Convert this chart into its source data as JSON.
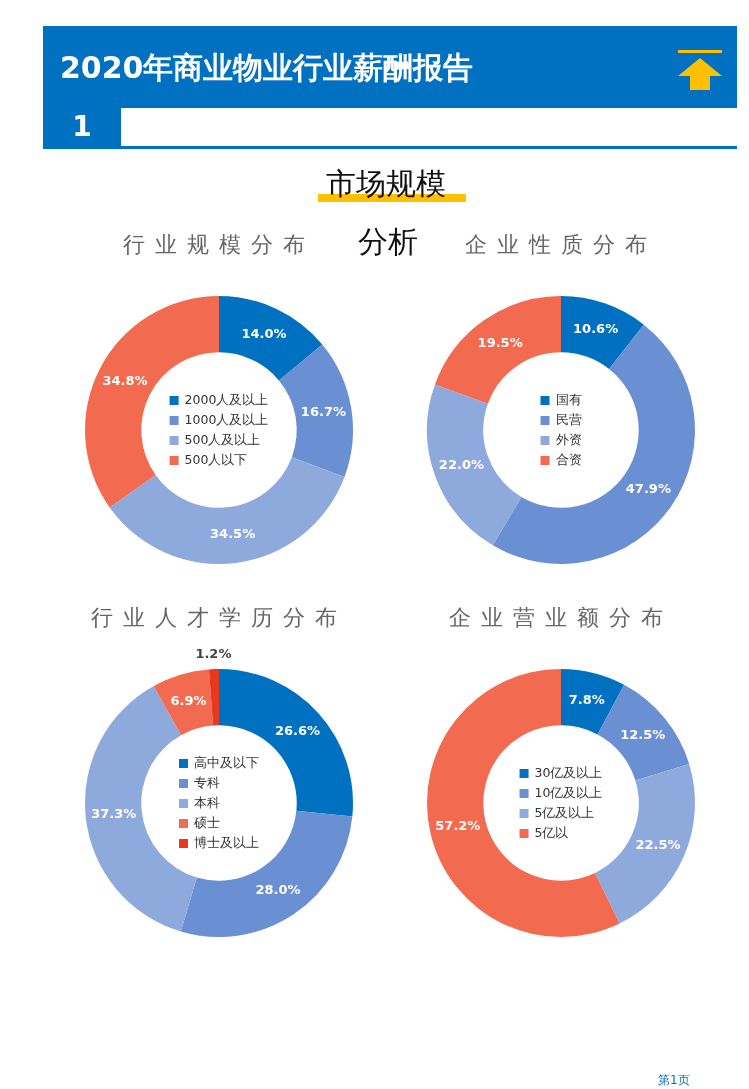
{
  "chart_data": [
    {
      "type": "other",
      "title": "2020年商业物业行业薪酬报告",
      "annotations": [
        "1",
        "市场规模",
        "分析",
        "第1页"
      ]
    },
    {
      "type": "donut",
      "title": "行业规模分布",
      "categories": [
        "2000人及以上",
        "1000人及以上",
        "500人及以上",
        "500人以下"
      ],
      "values": [
        14.0,
        16.7,
        34.5,
        34.8
      ],
      "value_labels": [
        "14.0%",
        "16.7%",
        "34.5%",
        "34.8%"
      ],
      "colors": [
        "#0070c0",
        "#6b8fd3",
        "#8eaadc",
        "#f26b50"
      ],
      "legend": "center"
    },
    {
      "type": "donut",
      "title": "企业性质分布",
      "categories": [
        "国有",
        "民营",
        "外资",
        "合资"
      ],
      "values": [
        10.6,
        47.9,
        22.0,
        19.5
      ],
      "value_labels": [
        "10.6%",
        "47.9%",
        "22.0%",
        "19.5%"
      ],
      "colors": [
        "#0070c0",
        "#6b8fd3",
        "#8eaadc",
        "#f26b50"
      ],
      "legend": "center"
    },
    {
      "type": "donut",
      "title": "行业人才学历分布",
      "categories": [
        "高中及以下",
        "专科",
        "本科",
        "硕士",
        "博士及以上"
      ],
      "values": [
        26.6,
        28.0,
        37.3,
        6.9,
        1.2
      ],
      "value_labels": [
        "26.6%",
        "28.0%",
        "37.3%",
        "6.9%",
        "1.2%"
      ],
      "colors": [
        "#0070c0",
        "#6b8fd3",
        "#8eaadc",
        "#f26b50",
        "#e8391e"
      ],
      "legend": "center"
    },
    {
      "type": "donut",
      "title": "企业营业额分布",
      "categories": [
        "30亿及以上",
        "10亿及以上",
        "5亿及以上",
        "5亿以"
      ],
      "values": [
        7.8,
        12.5,
        22.5,
        57.2
      ],
      "value_labels": [
        "7.8%",
        "12.5%",
        "22.5%",
        "57.2%"
      ],
      "colors": [
        "#0070c0",
        "#6b8fd3",
        "#8eaadc",
        "#f26b50"
      ],
      "legend": "center"
    }
  ]
}
